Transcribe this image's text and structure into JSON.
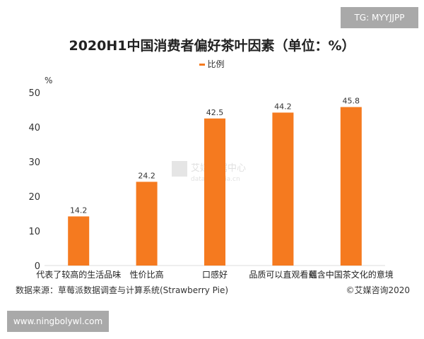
{
  "badge": "TG: MYYJJPP",
  "footer": {
    "source": "数据来源：草莓派数据调查与计算系统(Strawberry Pie)",
    "copyright": "©艾媒咨询2020",
    "site": "www.ningbolywl.com"
  },
  "watermark": "艾媒数据中心 data.iimedia.cn",
  "chart_data": {
    "type": "bar",
    "title": "2020H1中国消费者偏好茶叶因素（单位：%）",
    "ylabel": "%",
    "categories": [
      "代表了较高的生活品味",
      "性价比高",
      "口感好",
      "品质可以直观看到",
      "蕴含中国茶文化的意境"
    ],
    "series": [
      {
        "name": "比例",
        "values": [
          14.2,
          24.2,
          42.5,
          44.2,
          45.8
        ],
        "color": "#f57a1f"
      }
    ],
    "ylim": [
      0,
      50
    ],
    "yticks": [
      0,
      10,
      20,
      30,
      40,
      50
    ],
    "grid": false,
    "legend": "top-center"
  }
}
